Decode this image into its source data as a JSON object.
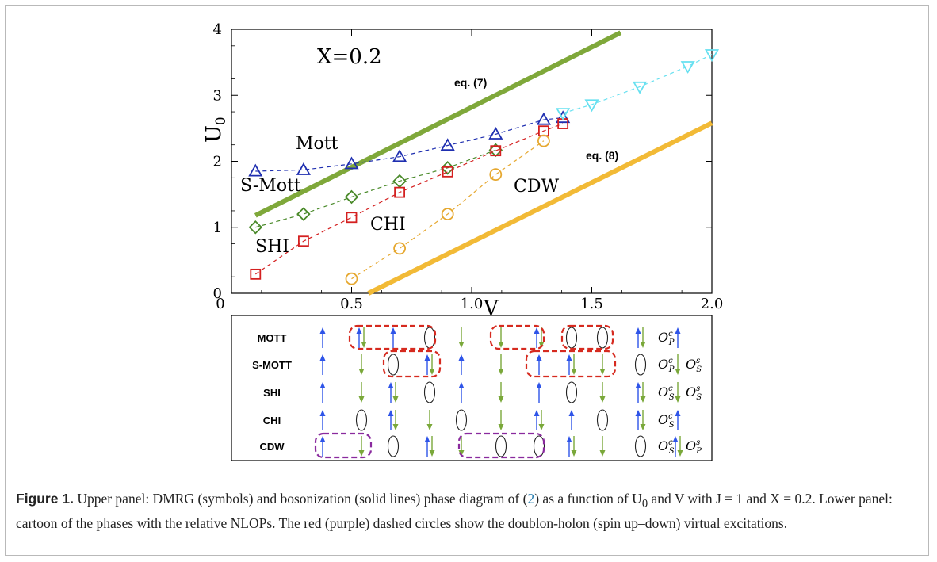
{
  "chart_data": {
    "type": "scatter",
    "xlabel": "V",
    "ylabel": "U",
    "ylabel_sub": "0",
    "xlim": [
      0,
      2.0
    ],
    "ylim": [
      0,
      4
    ],
    "xticks": [
      "0",
      "0.5",
      "1.0",
      "1.5",
      "2.0"
    ],
    "yticks": [
      "0",
      "1",
      "2",
      "3",
      "4"
    ],
    "annotations": [
      "X=0.2",
      "Mott",
      "S-Mott",
      "SHI",
      "CHI",
      "CDW",
      "eq. (7)",
      "eq. (8)"
    ],
    "series": [
      {
        "marker": "triangle-up",
        "color": "#1f2fb0",
        "x": [
          0.1,
          0.3,
          0.5,
          0.7,
          0.9,
          1.1,
          1.3,
          1.38
        ],
        "y": [
          1.85,
          1.87,
          1.96,
          2.07,
          2.24,
          2.41,
          2.63,
          2.66
        ]
      },
      {
        "marker": "diamond",
        "color": "#4a8a2a",
        "x": [
          0.1,
          0.3,
          0.5,
          0.7,
          0.9,
          1.1
        ],
        "y": [
          1.0,
          1.2,
          1.46,
          1.7,
          1.9,
          2.17
        ]
      },
      {
        "marker": "square",
        "color": "#d42020",
        "x": [
          0.1,
          0.3,
          0.5,
          0.7,
          0.9,
          1.1,
          1.3,
          1.38
        ],
        "y": [
          0.29,
          0.79,
          1.15,
          1.53,
          1.84,
          2.16,
          2.46,
          2.57
        ]
      },
      {
        "marker": "circle",
        "color": "#e6a830",
        "x": [
          0.5,
          0.7,
          0.9,
          1.1,
          1.3
        ],
        "y": [
          0.22,
          0.68,
          1.2,
          1.8,
          2.31
        ]
      },
      {
        "marker": "triangle-down",
        "color": "#66e0f0",
        "x": [
          1.38,
          1.5,
          1.7,
          1.9,
          2.0
        ],
        "y": [
          2.73,
          2.86,
          3.13,
          3.44,
          3.62
        ]
      }
    ],
    "lines": [
      {
        "color": "#7fa83a",
        "x": [
          0.1,
          1.62
        ],
        "y": [
          1.18,
          3.95
        ]
      },
      {
        "color": "#f2ba36",
        "x": [
          0.57,
          2.0
        ],
        "y": [
          0.0,
          2.58
        ]
      }
    ]
  },
  "cartoon": {
    "rows": [
      {
        "label": "MOTT",
        "sites": [
          "up",
          "both",
          "up",
          "empty",
          "down",
          "down",
          "both",
          "empty",
          "empty",
          "both",
          "up"
        ],
        "op": [
          {
            "s": "c",
            "b": "P"
          }
        ]
      },
      {
        "label": "S-MOTT",
        "sites": [
          "up",
          "down",
          "empty",
          "both",
          "up",
          "down",
          "up",
          "both",
          "down",
          "empty",
          "down"
        ],
        "op": [
          {
            "s": "c",
            "b": "P"
          },
          {
            "s": "s",
            "b": "S"
          }
        ]
      },
      {
        "label": "SHI",
        "sites": [
          "up",
          "down",
          "both",
          "empty",
          "up",
          "down",
          "up",
          "empty",
          "down",
          "both",
          "down"
        ],
        "op": [
          {
            "s": "c",
            "b": "S"
          },
          {
            "s": "s",
            "b": "S"
          }
        ]
      },
      {
        "label": "CHI",
        "sites": [
          "up",
          "empty",
          "both",
          "down",
          "empty",
          "down",
          "both",
          "up",
          "empty",
          "both",
          "up"
        ],
        "op": [
          {
            "s": "c",
            "b": "S"
          }
        ]
      },
      {
        "label": "CDW",
        "sites": [
          "up",
          "down",
          "empty",
          "both",
          "down",
          "empty",
          "empty",
          "both",
          "down",
          "empty",
          "both"
        ],
        "op": [
          {
            "s": "c",
            "b": "S"
          },
          {
            "s": "s",
            "b": "P"
          }
        ]
      }
    ],
    "op_letter": "O"
  },
  "caption": {
    "label": "Figure 1.",
    "part1": " Upper panel: DMRG (symbols) and bosonization (solid lines) phase diagram of (",
    "ref": "2",
    "part2": ") as a function of U",
    "sub0": "0",
    "part3": " and V with J = 1 and X = 0.2. Lower panel: cartoon of the phases with the relative NLOPs. The red (purple) dashed circles show the doublon-holon (spin up–down) virtual excitations."
  }
}
